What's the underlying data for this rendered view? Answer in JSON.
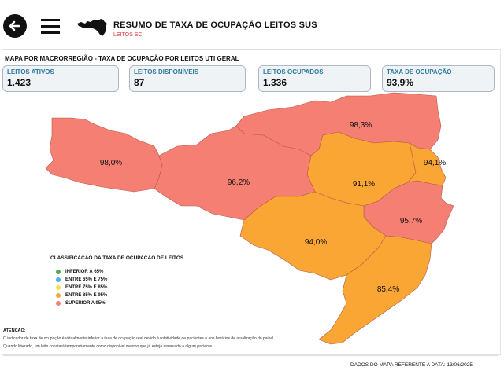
{
  "header": {
    "title": "RESUMO DE TAXA DE OCUPAÇÃO LEITOS SUS",
    "subtitle": "LEITOS SC",
    "back_icon": "arrow-left-icon",
    "menu_icon": "hamburger-menu-icon"
  },
  "map": {
    "title": "MAPA POR MACRORREGIÃO - TAXA DE OCUPAÇÃO POR LEITOS UTI GERAL",
    "regions": [
      {
        "label": "98,0%",
        "color": "#f57f72"
      },
      {
        "label": "96,2%",
        "color": "#f57f72"
      },
      {
        "label": "98,3%",
        "color": "#f57f72"
      },
      {
        "label": "91,1%",
        "color": "#f9a634"
      },
      {
        "label": "94,1%",
        "color": "#f9a634"
      },
      {
        "label": "95,7%",
        "color": "#f57f72"
      },
      {
        "label": "94,0%",
        "color": "#f9a634"
      },
      {
        "label": "85,4%",
        "color": "#f9a634"
      }
    ]
  },
  "stats": [
    {
      "label": "LEITOS ATIVOS",
      "value": "1.423"
    },
    {
      "label": "LEITOS DISPONÍVEIS",
      "value": "87"
    },
    {
      "label": "LEITOS OCUPADOS",
      "value": "1.336"
    },
    {
      "label": "TAXA DE OCUPAÇÃO",
      "value": "93,9%"
    }
  ],
  "legend": {
    "title": "CLASSIFICAÇÃO DA TAXA DE OCUPAÇÃO DE LEITOS",
    "items": [
      {
        "label": "INFERIOR À 65%",
        "color": "#4caf50"
      },
      {
        "label": "ENTRE 65% E 75%",
        "color": "#4fb3e8"
      },
      {
        "label": "ENTRE 75% E 85%",
        "color": "#f5e04a"
      },
      {
        "label": "ENTRE 85% E 95%",
        "color": "#f9a634"
      },
      {
        "label": "SUPERIOR A 95%",
        "color": "#f57f72"
      }
    ]
  },
  "notes": {
    "title": "ATENÇÃO:",
    "line1": "O indicador de taxa de ocupação é virtualmente inferior à taxa de ocupação real devido à rotatividade de pacientes e aos horários de atualização do painel.",
    "line2": "Quando liberado, um leito constará temporariamente como disponível mesmo que já esteja reservado a algum paciente."
  },
  "footer": {
    "date_text": "DADOS DO MAPA REFERENTE A DATA: 13/06/2025"
  }
}
